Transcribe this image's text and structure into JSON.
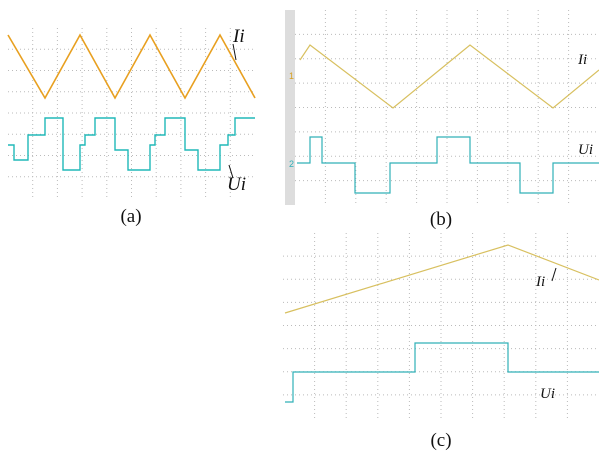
{
  "panels": [
    {
      "caption": "(a)",
      "labels": [
        "Ii",
        "Ui"
      ]
    },
    {
      "caption": "(b)",
      "channel_markers": [
        "1",
        "2"
      ],
      "labels": [
        "Ii",
        "Ui"
      ]
    },
    {
      "caption": "(c)",
      "labels": [
        "Ii",
        "Ui"
      ]
    }
  ]
}
